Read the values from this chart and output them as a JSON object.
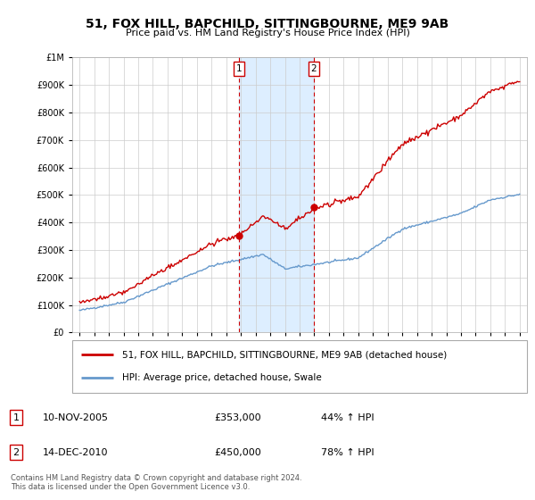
{
  "title": "51, FOX HILL, BAPCHILD, SITTINGBOURNE, ME9 9AB",
  "subtitle": "Price paid vs. HM Land Registry's House Price Index (HPI)",
  "legend_line1": "51, FOX HILL, BAPCHILD, SITTINGBOURNE, ME9 9AB (detached house)",
  "legend_line2": "HPI: Average price, detached house, Swale",
  "sale1_date": "10-NOV-2005",
  "sale1_price": 353000,
  "sale1_pct": "44% ↑ HPI",
  "sale2_date": "14-DEC-2010",
  "sale2_price": 450000,
  "sale2_pct": "78% ↑ HPI",
  "footer": "Contains HM Land Registry data © Crown copyright and database right 2024.\nThis data is licensed under the Open Government Licence v3.0.",
  "red_color": "#cc0000",
  "blue_color": "#6699cc",
  "shade_color": "#ddeeff",
  "sale1_x": 2005.86,
  "sale2_x": 2010.95,
  "ylim": [
    0,
    1000000
  ],
  "xlim": [
    1994.5,
    2025.5
  ]
}
